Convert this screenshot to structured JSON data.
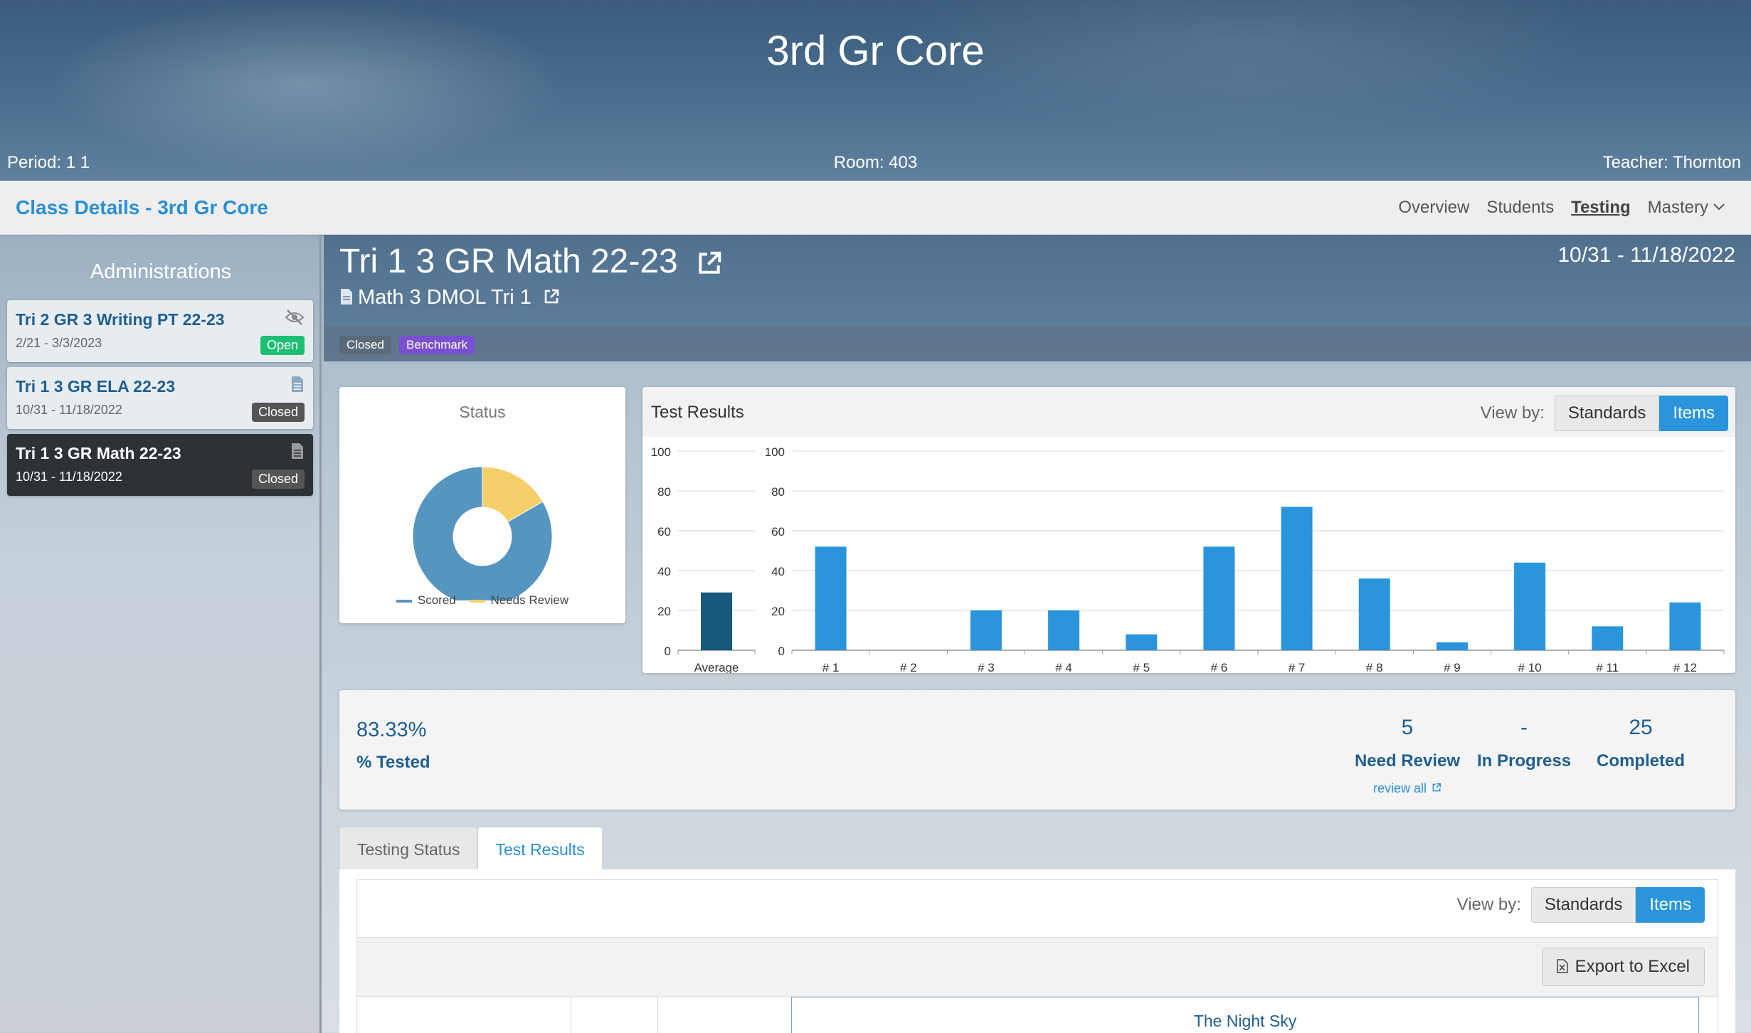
{
  "banner": {
    "title": "3rd Gr Core",
    "period": "Period: 1 1",
    "room": "Room: 403",
    "teacher": "Teacher: Thornton"
  },
  "subnav": {
    "class_details": "Class Details - 3rd Gr Core",
    "links": [
      "Overview",
      "Students",
      "Testing",
      "Mastery"
    ],
    "active": "Testing"
  },
  "sidebar": {
    "title": "Administrations",
    "items": [
      {
        "title": "Tri 2 GR 3 Writing PT 22-23",
        "dates": "2/21 - 3/3/2023",
        "badge": "Open",
        "icon": "eye-slash-icon"
      },
      {
        "title": "Tri 1 3 GR ELA 22-23",
        "dates": "10/31 - 11/18/2022",
        "badge": "Closed",
        "icon": "document-icon"
      },
      {
        "title": "Tri 1 3 GR Math 22-23",
        "dates": "10/31 - 11/18/2022",
        "badge": "Closed",
        "icon": "document-icon",
        "selected": true
      }
    ]
  },
  "assessment": {
    "title": "Tri 1 3 GR Math 22-23",
    "subtitle": "Math 3 DMOL Tri 1",
    "dates": "10/31 - 11/18/2022",
    "tags": [
      "Closed",
      "Benchmark"
    ]
  },
  "status_card": {
    "title": "Status",
    "legend": [
      "Scored",
      "Needs Review"
    ]
  },
  "results_card": {
    "title": "Test Results",
    "viewby_label": "View by:",
    "viewby_options": [
      "Standards",
      "Items"
    ],
    "viewby_active": "Items"
  },
  "summary": {
    "pct_tested_value": "83.33%",
    "pct_tested_label": "% Tested",
    "need_review_value": "5",
    "need_review_label": "Need Review",
    "in_progress_value": "-",
    "in_progress_label": "In Progress",
    "completed_value": "25",
    "completed_label": "Completed",
    "review_all": "review all"
  },
  "tabs": [
    "Testing Status",
    "Test Results"
  ],
  "tabs_active": "Test Results",
  "panel": {
    "viewby_label": "View by:",
    "viewby_options": [
      "Standards",
      "Items"
    ],
    "viewby_active": "Items",
    "export_label": "Export to Excel",
    "group_header": "The Night Sky"
  },
  "colors": {
    "scored": "#5595c0",
    "needs_review": "#f6cf6a",
    "bar": "#2a95dc",
    "average_bar": "#17587e"
  },
  "chart_data": [
    {
      "type": "pie",
      "title": "Status",
      "labels": [
        "Scored",
        "Needs Review"
      ],
      "values": [
        25,
        5
      ],
      "donut": true
    },
    {
      "type": "bar",
      "title": "Test Results",
      "panels": [
        {
          "categories": [
            "Average"
          ],
          "values": [
            29
          ],
          "ylim": [
            0,
            100
          ],
          "yticks": [
            0,
            20,
            40,
            60,
            80,
            100
          ]
        },
        {
          "categories": [
            "# 1",
            "# 2",
            "# 3",
            "# 4",
            "# 5",
            "# 6",
            "# 7",
            "# 8",
            "# 9",
            "# 10",
            "# 11",
            "# 12"
          ],
          "values": [
            52,
            0,
            20,
            20,
            8,
            52,
            72,
            36,
            4,
            44,
            12,
            24
          ],
          "ylim": [
            0,
            100
          ],
          "yticks": [
            0,
            20,
            40,
            60,
            80,
            100
          ]
        }
      ],
      "grid": true
    }
  ]
}
